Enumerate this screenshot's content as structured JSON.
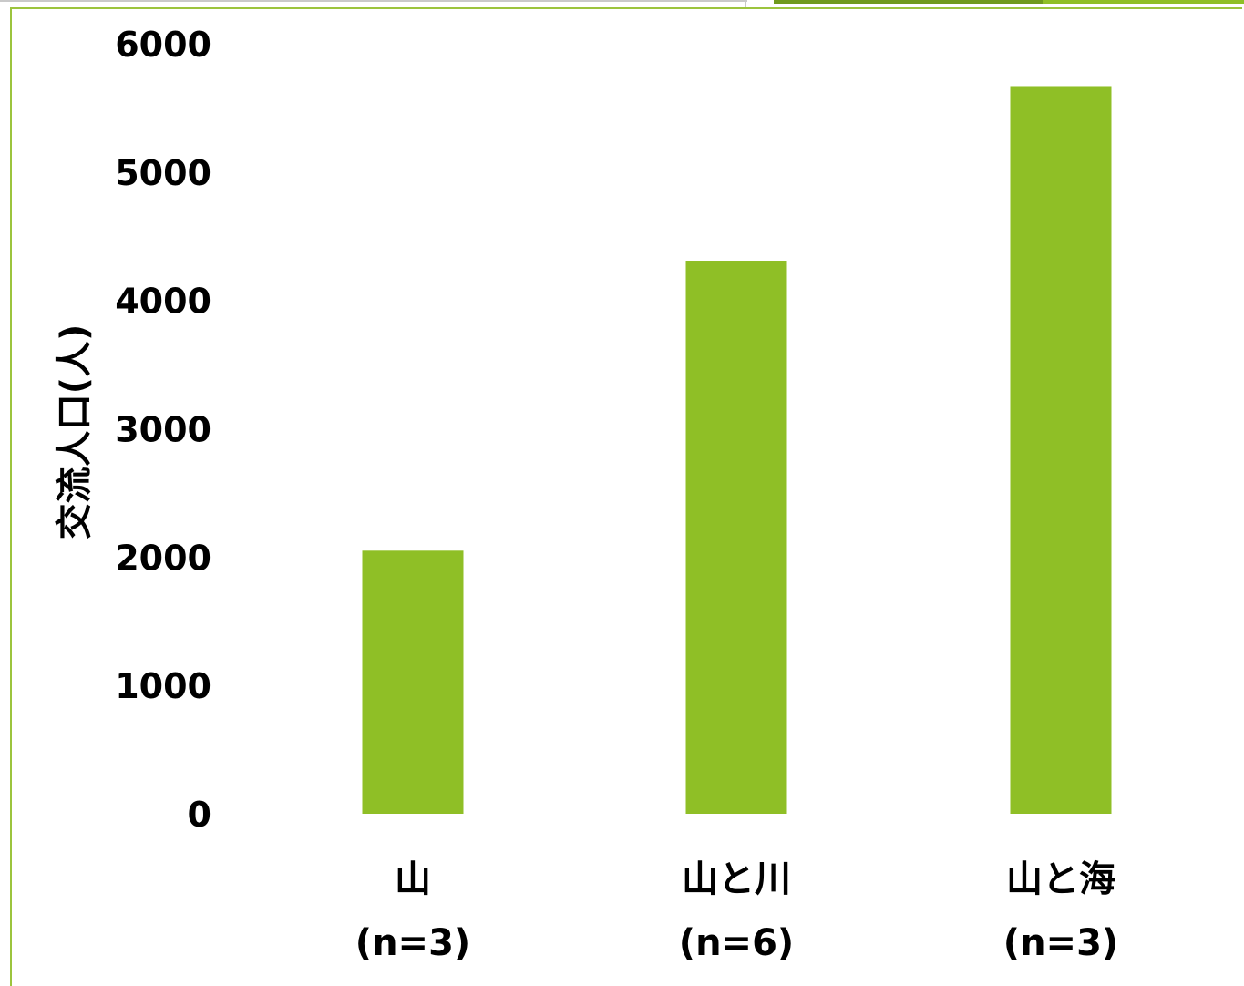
{
  "chart_data": {
    "type": "bar",
    "title": "",
    "xlabel": "",
    "ylabel": "交流人口(人)",
    "ylim": [
      0,
      6000
    ],
    "yticks": [
      0,
      1000,
      2000,
      3000,
      4000,
      5000,
      6000
    ],
    "grid": false,
    "legend": "none",
    "bar_color": "#8fbf26",
    "categories": [
      {
        "name": "山",
        "n": "(n=3)"
      },
      {
        "name": "山と川",
        "n": "(n=6)"
      },
      {
        "name": "山と海",
        "n": "(n=3)"
      }
    ],
    "values": [
      2050,
      4310,
      5670
    ]
  },
  "colors": {
    "frame": "#9cc43e",
    "accent_bar": "#8fbf26",
    "accent_bar_dark": "#6f9a1c",
    "decor_line": "#c9c9c9"
  }
}
